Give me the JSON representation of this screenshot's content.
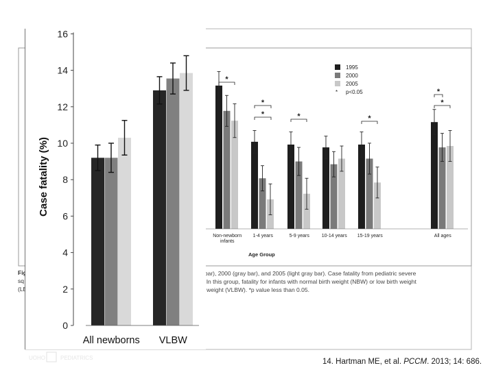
{
  "background_figure": {
    "legend": {
      "items": [
        {
          "label": "1995",
          "color": "#1e1e1e"
        },
        {
          "label": "2000",
          "color": "#7a7a7a"
        },
        {
          "label": "2005",
          "color": "#c8c8c8"
        }
      ],
      "sig_symbol": "*",
      "sig_label": "p<0.05"
    },
    "xlabel": "Age Group",
    "significance_mark": "*",
    "caption_fragment_1": "Fig",
    "caption_fragment_2": "sq",
    "caption_fragment_3": "(LE",
    "caption_line_1": "ck bar), 2000 (gray bar), and 2005 (light gray bar). Case fatality from pediatric severe",
    "caption_line_2": "ns. In this group, fatality for infants with normal birth weight (NBW) or low birth weight",
    "caption_line_3": "irth weight (VLBW). *p value less than 0.05."
  },
  "chart_data": [
    {
      "type": "bar",
      "title": "",
      "xlabel": "",
      "ylabel": "Case fatality (%)",
      "ylim": [
        0,
        16
      ],
      "yticks": [
        "0",
        "2",
        "4",
        "6",
        "8",
        "10",
        "12",
        "14",
        "16"
      ],
      "categories": [
        "All newborns",
        "VLBW"
      ],
      "series": [
        {
          "name": "1995",
          "color": "#262626",
          "values": [
            9.2,
            12.9
          ],
          "errors": [
            0.7,
            0.75
          ]
        },
        {
          "name": "2000",
          "color": "#808080",
          "values": [
            9.2,
            13.55
          ],
          "errors": [
            0.8,
            0.85
          ]
        },
        {
          "name": "2005",
          "color": "#d9d9d9",
          "values": [
            10.3,
            13.85
          ],
          "errors": [
            0.95,
            0.95
          ]
        }
      ]
    },
    {
      "type": "bar",
      "title": "",
      "xlabel": "Age Group",
      "ylabel": "",
      "categories": [
        "Non-newborn infants",
        "1-4 years",
        "5-9 years",
        "10-14 years",
        "15-19 years",
        "All ages"
      ],
      "category_labels": [
        [
          "Non-newborn",
          "infants"
        ],
        [
          "1-4 years"
        ],
        [
          "5-9 years"
        ],
        [
          "10-14 years"
        ],
        [
          "15-19 years"
        ],
        [
          "All ages"
        ]
      ],
      "series": [
        {
          "name": "1995",
          "color": "#1e1e1e",
          "values": [
            12.7,
            10.7,
            10.6,
            10.5,
            10.6,
            11.4
          ],
          "errors": [
            0.5,
            0.4,
            0.45,
            0.4,
            0.45,
            0.45
          ]
        },
        {
          "name": "2000",
          "color": "#7a7a7a",
          "values": [
            11.8,
            9.4,
            10.0,
            9.9,
            10.1,
            10.5
          ],
          "errors": [
            0.55,
            0.45,
            0.5,
            0.45,
            0.55,
            0.5
          ]
        },
        {
          "name": "2005",
          "color": "#c8c8c8",
          "values": [
            11.45,
            8.65,
            8.85,
            10.1,
            9.25,
            10.55
          ],
          "errors": [
            0.6,
            0.55,
            0.55,
            0.45,
            0.55,
            0.55
          ]
        }
      ]
    }
  ],
  "citation": {
    "prefix": "14. Hartman ME, et al. ",
    "journal": "PCCM",
    "suffix": ". 2013; 14: 686."
  }
}
